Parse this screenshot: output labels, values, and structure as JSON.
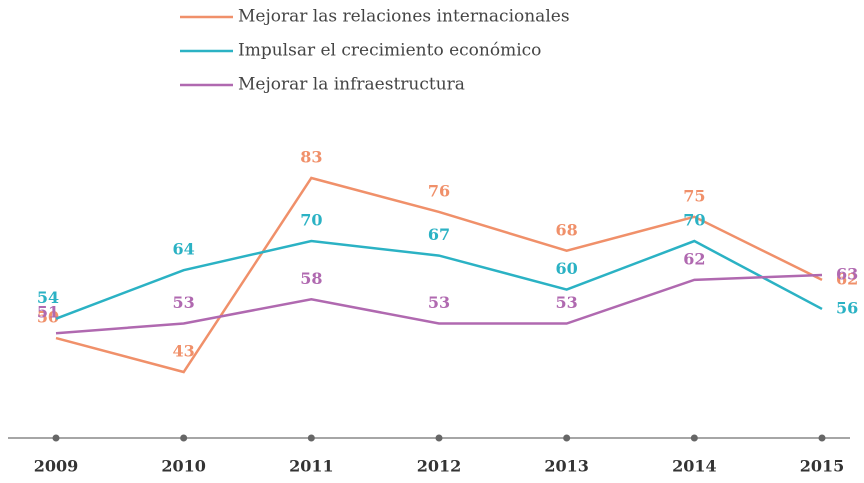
{
  "chart_data": {
    "type": "line",
    "categories": [
      "2009",
      "2010",
      "2011",
      "2012",
      "2013",
      "2014",
      "2015"
    ],
    "series": [
      {
        "name": "Mejorar las relaciones internacionales",
        "color": "#f0906a",
        "values": [
          50,
          43,
          83,
          76,
          68,
          75,
          62
        ]
      },
      {
        "name": "Impulsar el crecimiento económico",
        "color": "#2bb2c4",
        "values": [
          54,
          64,
          70,
          67,
          60,
          70,
          56
        ]
      },
      {
        "name": "Mejorar la infraestructura",
        "color": "#b069b0",
        "values": [
          51,
          53,
          58,
          53,
          53,
          62,
          63
        ]
      }
    ]
  }
}
